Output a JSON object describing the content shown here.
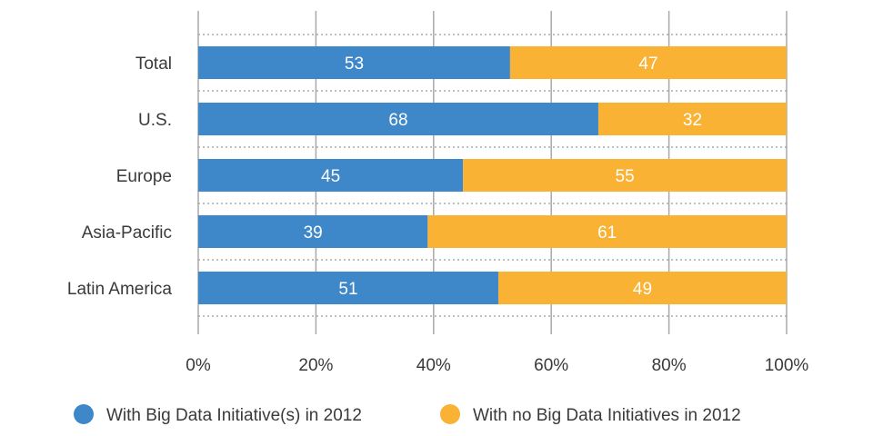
{
  "chart_data": {
    "type": "bar",
    "orientation": "horizontal",
    "stacked": true,
    "categories": [
      "Total",
      "U.S.",
      "Europe",
      "Asia-Pacific",
      "Latin America"
    ],
    "series": [
      {
        "name": "With Big Data Initiative(s) in 2012",
        "values": [
          53,
          68,
          45,
          39,
          51
        ],
        "color": "#3e87c9"
      },
      {
        "name": "With no Big Data Initiatives in 2012",
        "values": [
          47,
          32,
          55,
          61,
          49
        ],
        "color": "#f9b233"
      }
    ],
    "x_ticks": [
      "0%",
      "20%",
      "40%",
      "60%",
      "80%",
      "100%"
    ],
    "xlim": [
      0,
      100
    ],
    "grid": true,
    "legend_position": "bottom",
    "title": "",
    "xlabel": "",
    "ylabel": ""
  }
}
